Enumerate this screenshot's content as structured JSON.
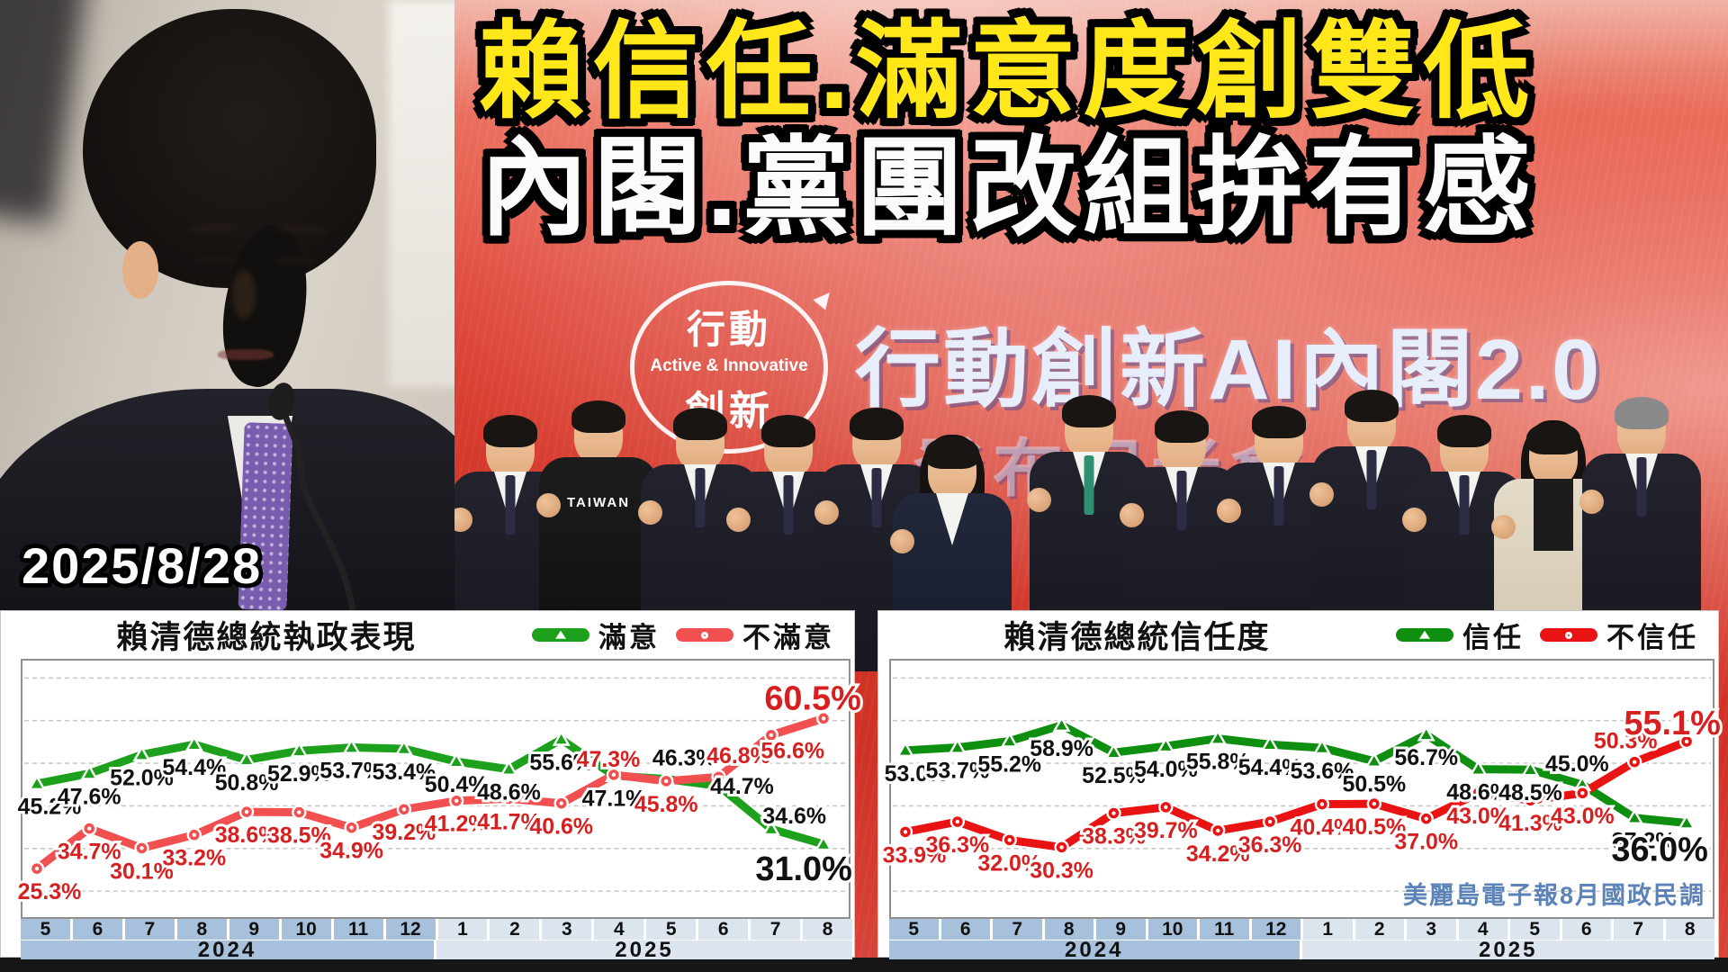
{
  "date_label": "2025/8/28",
  "headline": {
    "line1": "賴信任.滿意度創雙低",
    "line2": "內閣.黨團改組拚有感"
  },
  "backdrop": {
    "badge_top": "行動",
    "badge_mid": "Active & Innovative",
    "badge_bottom": "創新",
    "banner_text": "行動創新AI內閣2.0",
    "sub_text": "發布記者會",
    "taiwan_shirt_label": "TAIWAN"
  },
  "source_label": "美麗島電子報8月國政民調",
  "months": [
    "5",
    "6",
    "7",
    "8",
    "9",
    "10",
    "11",
    "12",
    "1",
    "2",
    "3",
    "4",
    "5",
    "6",
    "7",
    "8"
  ],
  "years": [
    {
      "label": "2024",
      "span": 8
    },
    {
      "label": "2025",
      "span": 8
    }
  ],
  "colors": {
    "month_2024_bg": "#a7c1dc",
    "month_2025_bg": "#dce4ee",
    "watermark_blue": "#5b83b8",
    "headline_yellow": "#ffe71a",
    "headline_white": "#fbfbfb",
    "green_label_text": "#111111",
    "red_label_text": "#d81f1f"
  },
  "chart_data": [
    {
      "type": "line",
      "title": "賴清德總統執政表現",
      "x_categories": [
        "2024-5",
        "2024-6",
        "2024-7",
        "2024-8",
        "2024-9",
        "2024-10",
        "2024-11",
        "2024-12",
        "2025-1",
        "2025-2",
        "2025-3",
        "2025-4",
        "2025-5",
        "2025-6",
        "2025-7",
        "2025-8"
      ],
      "ylim": [
        14,
        74
      ],
      "grid": "dashed horizontal every 10",
      "legend_position": "top-right",
      "series": [
        {
          "name": "滿意",
          "color": "#1da11d",
          "marker": "triangle",
          "values": [
            45.2,
            47.6,
            52.0,
            54.4,
            50.8,
            52.9,
            53.7,
            53.4,
            50.4,
            48.6,
            55.6,
            47.1,
            46.3,
            44.7,
            34.6,
            31.0
          ],
          "label_pos": [
            "b",
            "b",
            "b",
            "b",
            "b",
            "b",
            "b",
            "b",
            "b",
            "b",
            "b",
            "b",
            "a",
            "a",
            "a",
            "B"
          ],
          "label_dx": {
            "0": 14,
            "12": 20,
            "13": 26,
            "14": 26,
            "15": -22
          },
          "label_dy": {
            "13": 24,
            "14": 9,
            "15": -6
          }
        },
        {
          "name": "不滿意",
          "color": "#f25050",
          "marker": "circle",
          "values": [
            25.3,
            34.7,
            30.1,
            33.2,
            38.6,
            38.5,
            34.9,
            39.2,
            41.2,
            41.7,
            40.6,
            47.3,
            45.8,
            46.8,
            56.6,
            60.5
          ],
          "label_pos": [
            "b",
            "b",
            "b",
            "b",
            "b",
            "b",
            "b",
            "b",
            "b",
            "b",
            "b",
            "a",
            "b",
            "a",
            "b",
            "A"
          ],
          "label_dx": {
            "0": 14,
            "11": -6,
            "13": 22,
            "14": 24,
            "15": -12
          },
          "label_dy": {
            "11": 6,
            "14": -8,
            "15": 10
          }
        }
      ]
    },
    {
      "type": "line",
      "title": "賴清德總統信任度",
      "x_categories": [
        "2024-5",
        "2024-6",
        "2024-7",
        "2024-8",
        "2024-9",
        "2024-10",
        "2024-11",
        "2024-12",
        "2025-1",
        "2025-2",
        "2025-3",
        "2025-4",
        "2025-5",
        "2025-6",
        "2025-7",
        "2025-8"
      ],
      "ylim": [
        14,
        74
      ],
      "grid": "dashed horizontal every 10",
      "legend_position": "top-right",
      "series": [
        {
          "name": "信任",
          "color": "#0f8f0f",
          "marker": "triangle",
          "values": [
            53.0,
            53.7,
            55.2,
            58.9,
            52.5,
            54.0,
            55.8,
            54.4,
            53.6,
            50.5,
            56.7,
            48.6,
            48.5,
            45.0,
            37.2,
            36.0
          ],
          "label_pos": [
            "b",
            "b",
            "b",
            "b",
            "b",
            "b",
            "b",
            "b",
            "b",
            "b",
            "b",
            "b",
            "b",
            "a",
            "b",
            "B"
          ],
          "label_dx": {
            "0": 12,
            "13": -6,
            "14": 10,
            "15": -30
          },
          "label_dy": {
            "15": -4
          }
        },
        {
          "name": "不信任",
          "color": "#ea1313",
          "marker": "circle",
          "values": [
            33.9,
            36.3,
            32.0,
            30.3,
            38.3,
            39.7,
            34.2,
            36.3,
            40.4,
            40.5,
            37.0,
            43.0,
            41.3,
            43.0,
            50.3,
            55.1
          ],
          "label_pos": [
            "b",
            "b",
            "b",
            "b",
            "b",
            "b",
            "b",
            "b",
            "b",
            "b",
            "b",
            "b",
            "b",
            "b",
            "a",
            "A"
          ],
          "label_dx": {
            "0": 10,
            "14": -10,
            "15": -16
          },
          "label_dy": {
            "15": 12
          }
        }
      ]
    }
  ]
}
